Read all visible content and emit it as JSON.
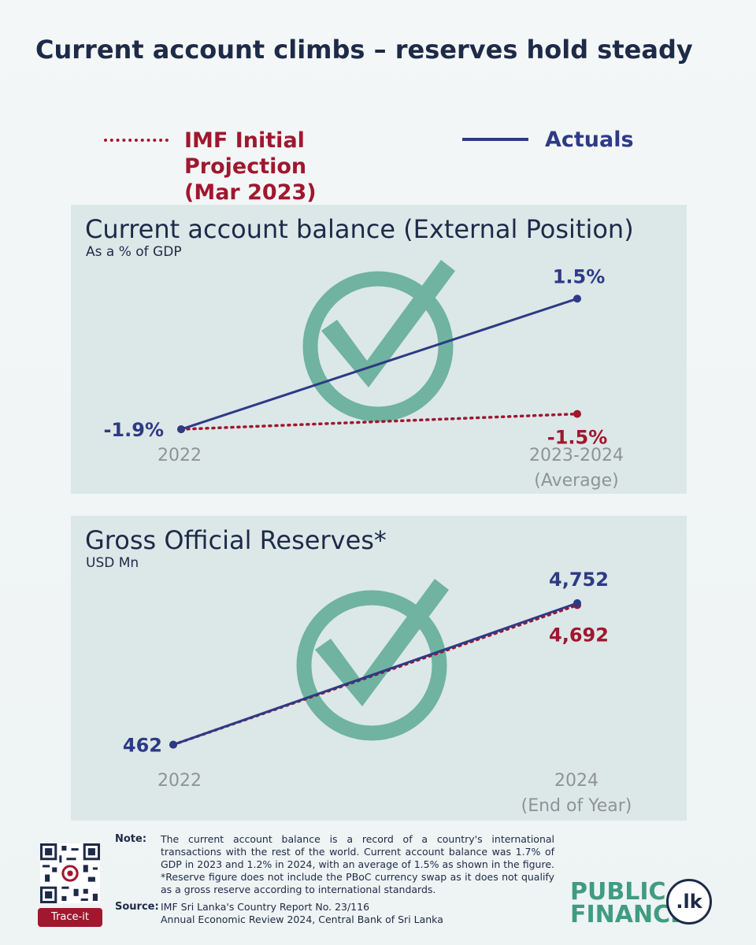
{
  "title": "Current account climbs – reserves hold steady",
  "legend": {
    "projection_line1": "IMF Initial Projection",
    "projection_line2": "(Mar 2023)",
    "actuals": "Actuals"
  },
  "colors": {
    "actual": "#2d3a85",
    "projection": "#a0172e",
    "check": "#6fb3a0",
    "tick": "#8e9496"
  },
  "chart_data": [
    {
      "type": "line",
      "title": "Current account balance (External Position)",
      "subtitle": "As a % of GDP",
      "categories": [
        "2022",
        "2023-2024 (Average)"
      ],
      "category_lines": [
        [
          "2022"
        ],
        [
          "2023-2024",
          "(Average)"
        ]
      ],
      "series": [
        {
          "name": "IMF Initial Projection (Mar 2023)",
          "values": [
            -1.9,
            -1.5
          ],
          "labels": [
            "",
            "-1.5%"
          ],
          "style": "dotted"
        },
        {
          "name": "Actuals",
          "values": [
            -1.9,
            1.5
          ],
          "labels": [
            "-1.9%",
            "1.5%"
          ],
          "style": "solid"
        }
      ],
      "ylim": [
        -2.0,
        2.1
      ]
    },
    {
      "type": "line",
      "title": "Gross Official Reserves*",
      "subtitle": "USD Mn",
      "categories": [
        "2022",
        "2024 (End of Year)"
      ],
      "category_lines": [
        [
          "2022"
        ],
        [
          "2024",
          "(End of Year)"
        ]
      ],
      "series": [
        {
          "name": "IMF Initial Projection (Mar 2023)",
          "values": [
            462,
            4692
          ],
          "labels": [
            "",
            "4,692"
          ],
          "style": "dotted"
        },
        {
          "name": "Actuals",
          "values": [
            462,
            4752
          ],
          "labels": [
            "462",
            "4,752"
          ],
          "style": "solid"
        }
      ],
      "ylim": [
        0,
        5250
      ]
    }
  ],
  "note": {
    "label": "Note:",
    "text": "The current account balance is a record of a country's international transactions with the rest of the world. Current account balance was 1.7% of GDP in 2023 and 1.2% in 2024, with an average of 1.5% as shown in the figure. *Reserve figure does not include the PBoC currency swap as it does not qualify as a gross reserve according to international standards."
  },
  "source": {
    "label": "Source:",
    "line1": "IMF Sri Lanka's Country Report No. 23/116",
    "line2": "Annual Economic Review 2024, Central Bank of Sri Lanka"
  },
  "qr_label": "Trace-it",
  "brand": {
    "line1": "PUBLIC",
    "line2": "FINANCE",
    "badge": ".lk"
  }
}
